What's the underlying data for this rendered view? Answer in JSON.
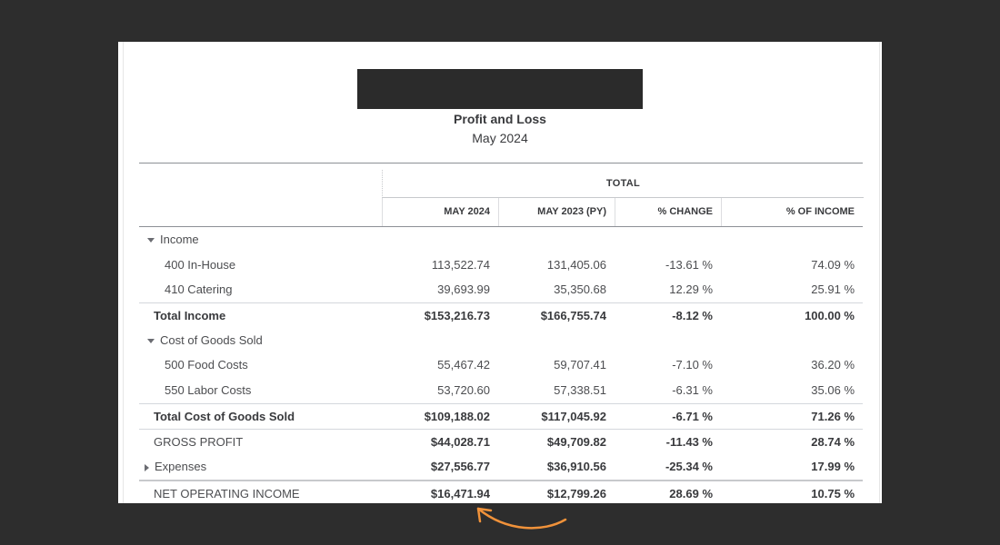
{
  "report": {
    "title": "Profit and Loss",
    "period": "May 2024"
  },
  "columns": {
    "group_label": "TOTAL",
    "headers": [
      "MAY 2024",
      "MAY 2023 (PY)",
      "% CHANGE",
      "% OF INCOME"
    ]
  },
  "rows": [
    {
      "label": "Income",
      "type": "section",
      "expanded": true,
      "values": [
        "",
        "",
        "",
        ""
      ]
    },
    {
      "label": "400 In-House",
      "type": "item",
      "values": [
        "113,522.74",
        "131,405.06",
        "-13.61 %",
        "74.09 %"
      ]
    },
    {
      "label": "410 Catering",
      "type": "item",
      "values": [
        "39,693.99",
        "35,350.68",
        "12.29 %",
        "25.91 %"
      ]
    },
    {
      "label": "Total Income",
      "type": "total",
      "values": [
        "$153,216.73",
        "$166,755.74",
        "-8.12 %",
        "100.00 %"
      ]
    },
    {
      "label": "Cost of Goods Sold",
      "type": "section",
      "expanded": true,
      "values": [
        "",
        "",
        "",
        ""
      ]
    },
    {
      "label": "500 Food Costs",
      "type": "item",
      "values": [
        "55,467.42",
        "59,707.41",
        "-7.10 %",
        "36.20 %"
      ]
    },
    {
      "label": "550 Labor Costs",
      "type": "item",
      "values": [
        "53,720.60",
        "57,338.51",
        "-6.31 %",
        "35.06 %"
      ]
    },
    {
      "label": "Total Cost of Goods Sold",
      "type": "total",
      "values": [
        "$109,188.02",
        "$117,045.92",
        "-6.71 %",
        "71.26 %"
      ]
    },
    {
      "label": "GROSS PROFIT",
      "type": "summary",
      "values": [
        "$44,028.71",
        "$49,709.82",
        "-11.43 %",
        "28.74 %"
      ]
    },
    {
      "label": "Expenses",
      "type": "collapsed-section",
      "expanded": false,
      "values": [
        "$27,556.77",
        "$36,910.56",
        "-25.34 %",
        "17.99 %"
      ]
    },
    {
      "label": "NET OPERATING INCOME",
      "type": "summary",
      "values": [
        "$16,471.94",
        "$12,799.26",
        "28.69 %",
        "10.75 %"
      ]
    }
  ],
  "colors": {
    "background": "#2d2d2d",
    "sheet": "#ffffff",
    "annotation_arrow": "#f0923a",
    "redaction": "#2b2b2b"
  }
}
